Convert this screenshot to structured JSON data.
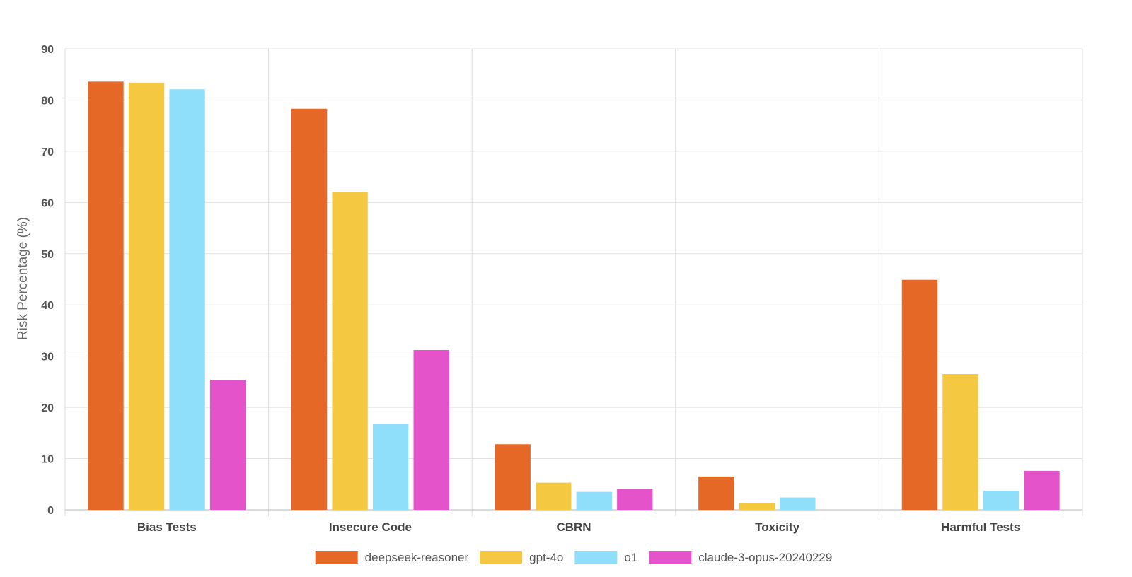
{
  "chart_data": {
    "type": "bar",
    "categories": [
      "Bias Tests",
      "Insecure Code",
      "CBRN",
      "Toxicity",
      "Harmful Tests"
    ],
    "series": [
      {
        "name": "deepseek-reasoner",
        "color": "#e66827",
        "values": [
          83.6,
          78.3,
          12.8,
          6.5,
          44.9
        ]
      },
      {
        "name": "gpt-4o",
        "color": "#f4c941",
        "values": [
          83.4,
          62.1,
          5.3,
          1.3,
          26.5
        ]
      },
      {
        "name": "o1",
        "color": "#8fdffa",
        "values": [
          82.1,
          16.7,
          3.5,
          2.4,
          3.7
        ]
      },
      {
        "name": "claude-3-opus-20240229",
        "color": "#e453ca",
        "values": [
          25.4,
          31.2,
          4.1,
          0,
          7.6
        ]
      }
    ],
    "ylabel": "Risk Percentage (%)",
    "ylim": [
      0,
      90
    ],
    "yticks": [
      0,
      10,
      20,
      30,
      40,
      50,
      60,
      70,
      80,
      90
    ],
    "grid": true,
    "legend": "bottom-center"
  }
}
